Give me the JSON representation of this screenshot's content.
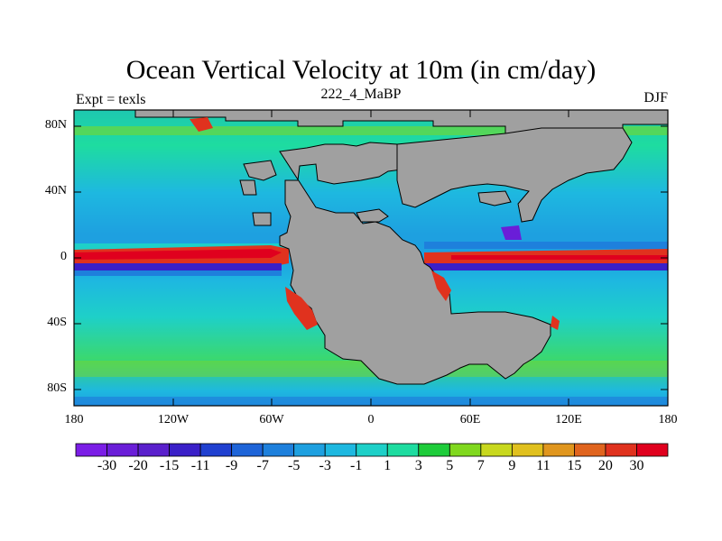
{
  "title": "Ocean Vertical Velocity at 10m (in cm/day)",
  "left_label": "Expt = texls",
  "center_label": "222_4_MaBP",
  "right_label": "DJF",
  "lat_ticks": [
    "80N",
    "40N",
    "0",
    "40S",
    "80S"
  ],
  "lon_ticks": [
    "180",
    "120W",
    "60W",
    "0",
    "60E",
    "120E",
    "180"
  ],
  "colorbar": {
    "labels": [
      "-30",
      "-20",
      "-15",
      "-11",
      "-9",
      "-7",
      "-5",
      "-3",
      "-1",
      "1",
      "3",
      "5",
      "7",
      "9",
      "11",
      "15",
      "20",
      "30"
    ],
    "colors": [
      "#7b1ee6",
      "#6a1ed8",
      "#5a20cc",
      "#3a20c8",
      "#2040d0",
      "#1e64d8",
      "#1e80dc",
      "#1ea0e0",
      "#1eb8e0",
      "#1ed0c8",
      "#1edca0",
      "#1ecc3a",
      "#80d81e",
      "#c8d81e",
      "#e0c01e",
      "#e0961e",
      "#e0641e",
      "#e0321e",
      "#e0001e"
    ]
  },
  "colors": {
    "land": "#a0a0a0",
    "ocean_base": "#1ed490",
    "coast": "#000000"
  }
}
